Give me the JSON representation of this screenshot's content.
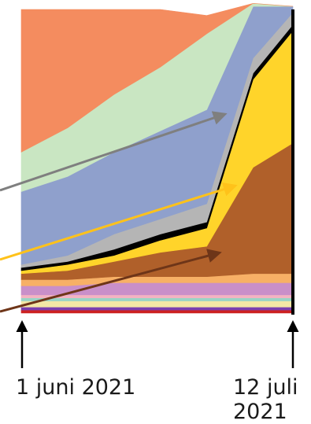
{
  "chart_data": {
    "type": "area",
    "stacked": true,
    "normalized_percent": true,
    "x": [
      "2021-06-01",
      "2021-06-08",
      "2021-06-15",
      "2021-06-22",
      "2021-06-29",
      "2021-07-06",
      "2021-07-12"
    ],
    "x_tick_labels": [
      {
        "x": "2021-06-01",
        "text": "1 juni 2021"
      },
      {
        "x": "2021-07-12",
        "text": "12 juli 2021"
      }
    ],
    "ylim": [
      0,
      100
    ],
    "grid": false,
    "legend": "none",
    "series": [
      {
        "color": "#cc2222",
        "values": [
          1,
          1,
          1,
          1,
          1,
          1,
          1
        ]
      },
      {
        "color": "#7b3fb0",
        "values": [
          1,
          1,
          1,
          1,
          1,
          1,
          1
        ]
      },
      {
        "color": "#f3e7a6",
        "values": [
          2,
          2,
          2,
          2,
          2,
          2,
          2
        ]
      },
      {
        "color": "#9ad4c6",
        "values": [
          1,
          1,
          1,
          1,
          1,
          1,
          1
        ]
      },
      {
        "color": "#f3b3c2",
        "values": [
          1,
          1,
          1,
          1,
          1,
          1,
          1
        ]
      },
      {
        "color": "#c98fc9",
        "values": [
          3,
          3,
          4,
          4,
          4,
          4,
          4
        ]
      },
      {
        "color": "#f7b066",
        "values": [
          2,
          2,
          2,
          2,
          2,
          3,
          3
        ]
      },
      {
        "color": "#b0602a",
        "values": [
          2,
          3,
          5,
          8,
          10,
          35,
          43
        ]
      },
      {
        "color": "#ffd42a",
        "values": [
          1,
          2,
          2,
          4,
          6,
          29,
          37
        ]
      },
      {
        "color": "#000000",
        "values": [
          1,
          1,
          2,
          2,
          2,
          2,
          2
        ]
      },
      {
        "color": "#b5b5b5",
        "values": [
          1,
          2,
          5,
          5,
          6,
          5,
          4
        ]
      },
      {
        "color": "#8fa0cc",
        "values": [
          24,
          26,
          27,
          29,
          31,
          17,
          2
        ]
      },
      {
        "color": "#c9e6c2",
        "values": [
          13,
          16,
          19,
          21,
          25,
          1,
          0
        ]
      },
      {
        "color": "#f48c5f",
        "values": [
          47,
          39,
          28,
          19,
          6,
          0,
          0
        ]
      }
    ],
    "annotations": [
      {
        "type": "arrow",
        "color": "#7f7f7f",
        "target_series_color": "#b5b5b5"
      },
      {
        "type": "arrow",
        "color": "#ffc21a",
        "target_series_color": "#ffd42a"
      },
      {
        "type": "arrow",
        "color": "#6e3518",
        "target_series_color": "#b0602a"
      },
      {
        "type": "arrow",
        "color": "#000000",
        "direction": "up",
        "at_x": "2021-06-01"
      },
      {
        "type": "arrow",
        "color": "#000000",
        "direction": "up",
        "at_x": "2021-07-12"
      }
    ]
  }
}
